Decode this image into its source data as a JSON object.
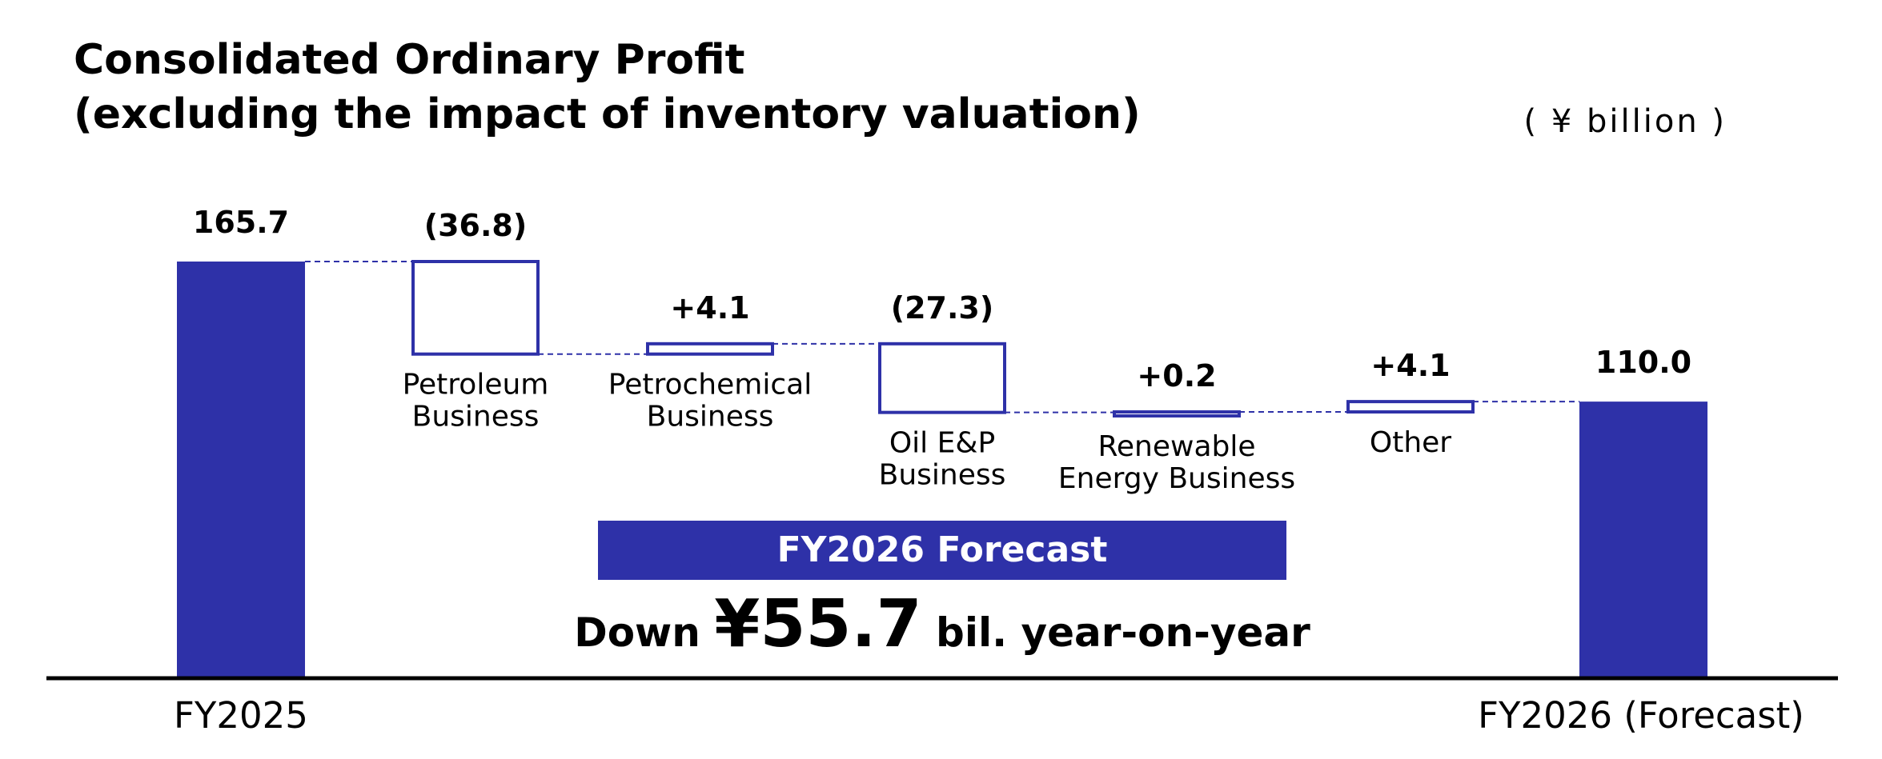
{
  "chart_data": {
    "type": "waterfall",
    "title_line1": "Consolidated Ordinary Profit",
    "title_line2": "(excluding the impact of inventory valuation)",
    "unit": "( ¥ billion )",
    "color": "#2e31a8",
    "start": {
      "label": "FY2025",
      "value": 165.7,
      "value_label": "165.7"
    },
    "steps": [
      {
        "label": [
          "Petroleum",
          "Business"
        ],
        "delta": -36.8,
        "value_label": "(36.8)"
      },
      {
        "label": [
          "Petrochemical",
          "Business"
        ],
        "delta": 4.1,
        "value_label": "+4.1"
      },
      {
        "label": [
          "Oil E&P",
          "Business"
        ],
        "delta": -27.3,
        "value_label": "(27.3)"
      },
      {
        "label": [
          "Renewable",
          "Energy Business"
        ],
        "delta": 0.2,
        "value_label": "+0.2"
      },
      {
        "label": [
          "Other"
        ],
        "delta": 4.1,
        "value_label": "+4.1"
      }
    ],
    "end": {
      "label": "FY2026 (Forecast)",
      "value": 110.0,
      "value_label": "110.0"
    },
    "banner": "FY2026 Forecast",
    "summary": {
      "prefix": "Down ",
      "amount": "¥55.7",
      "suffix": " bil. year-on-year"
    }
  }
}
